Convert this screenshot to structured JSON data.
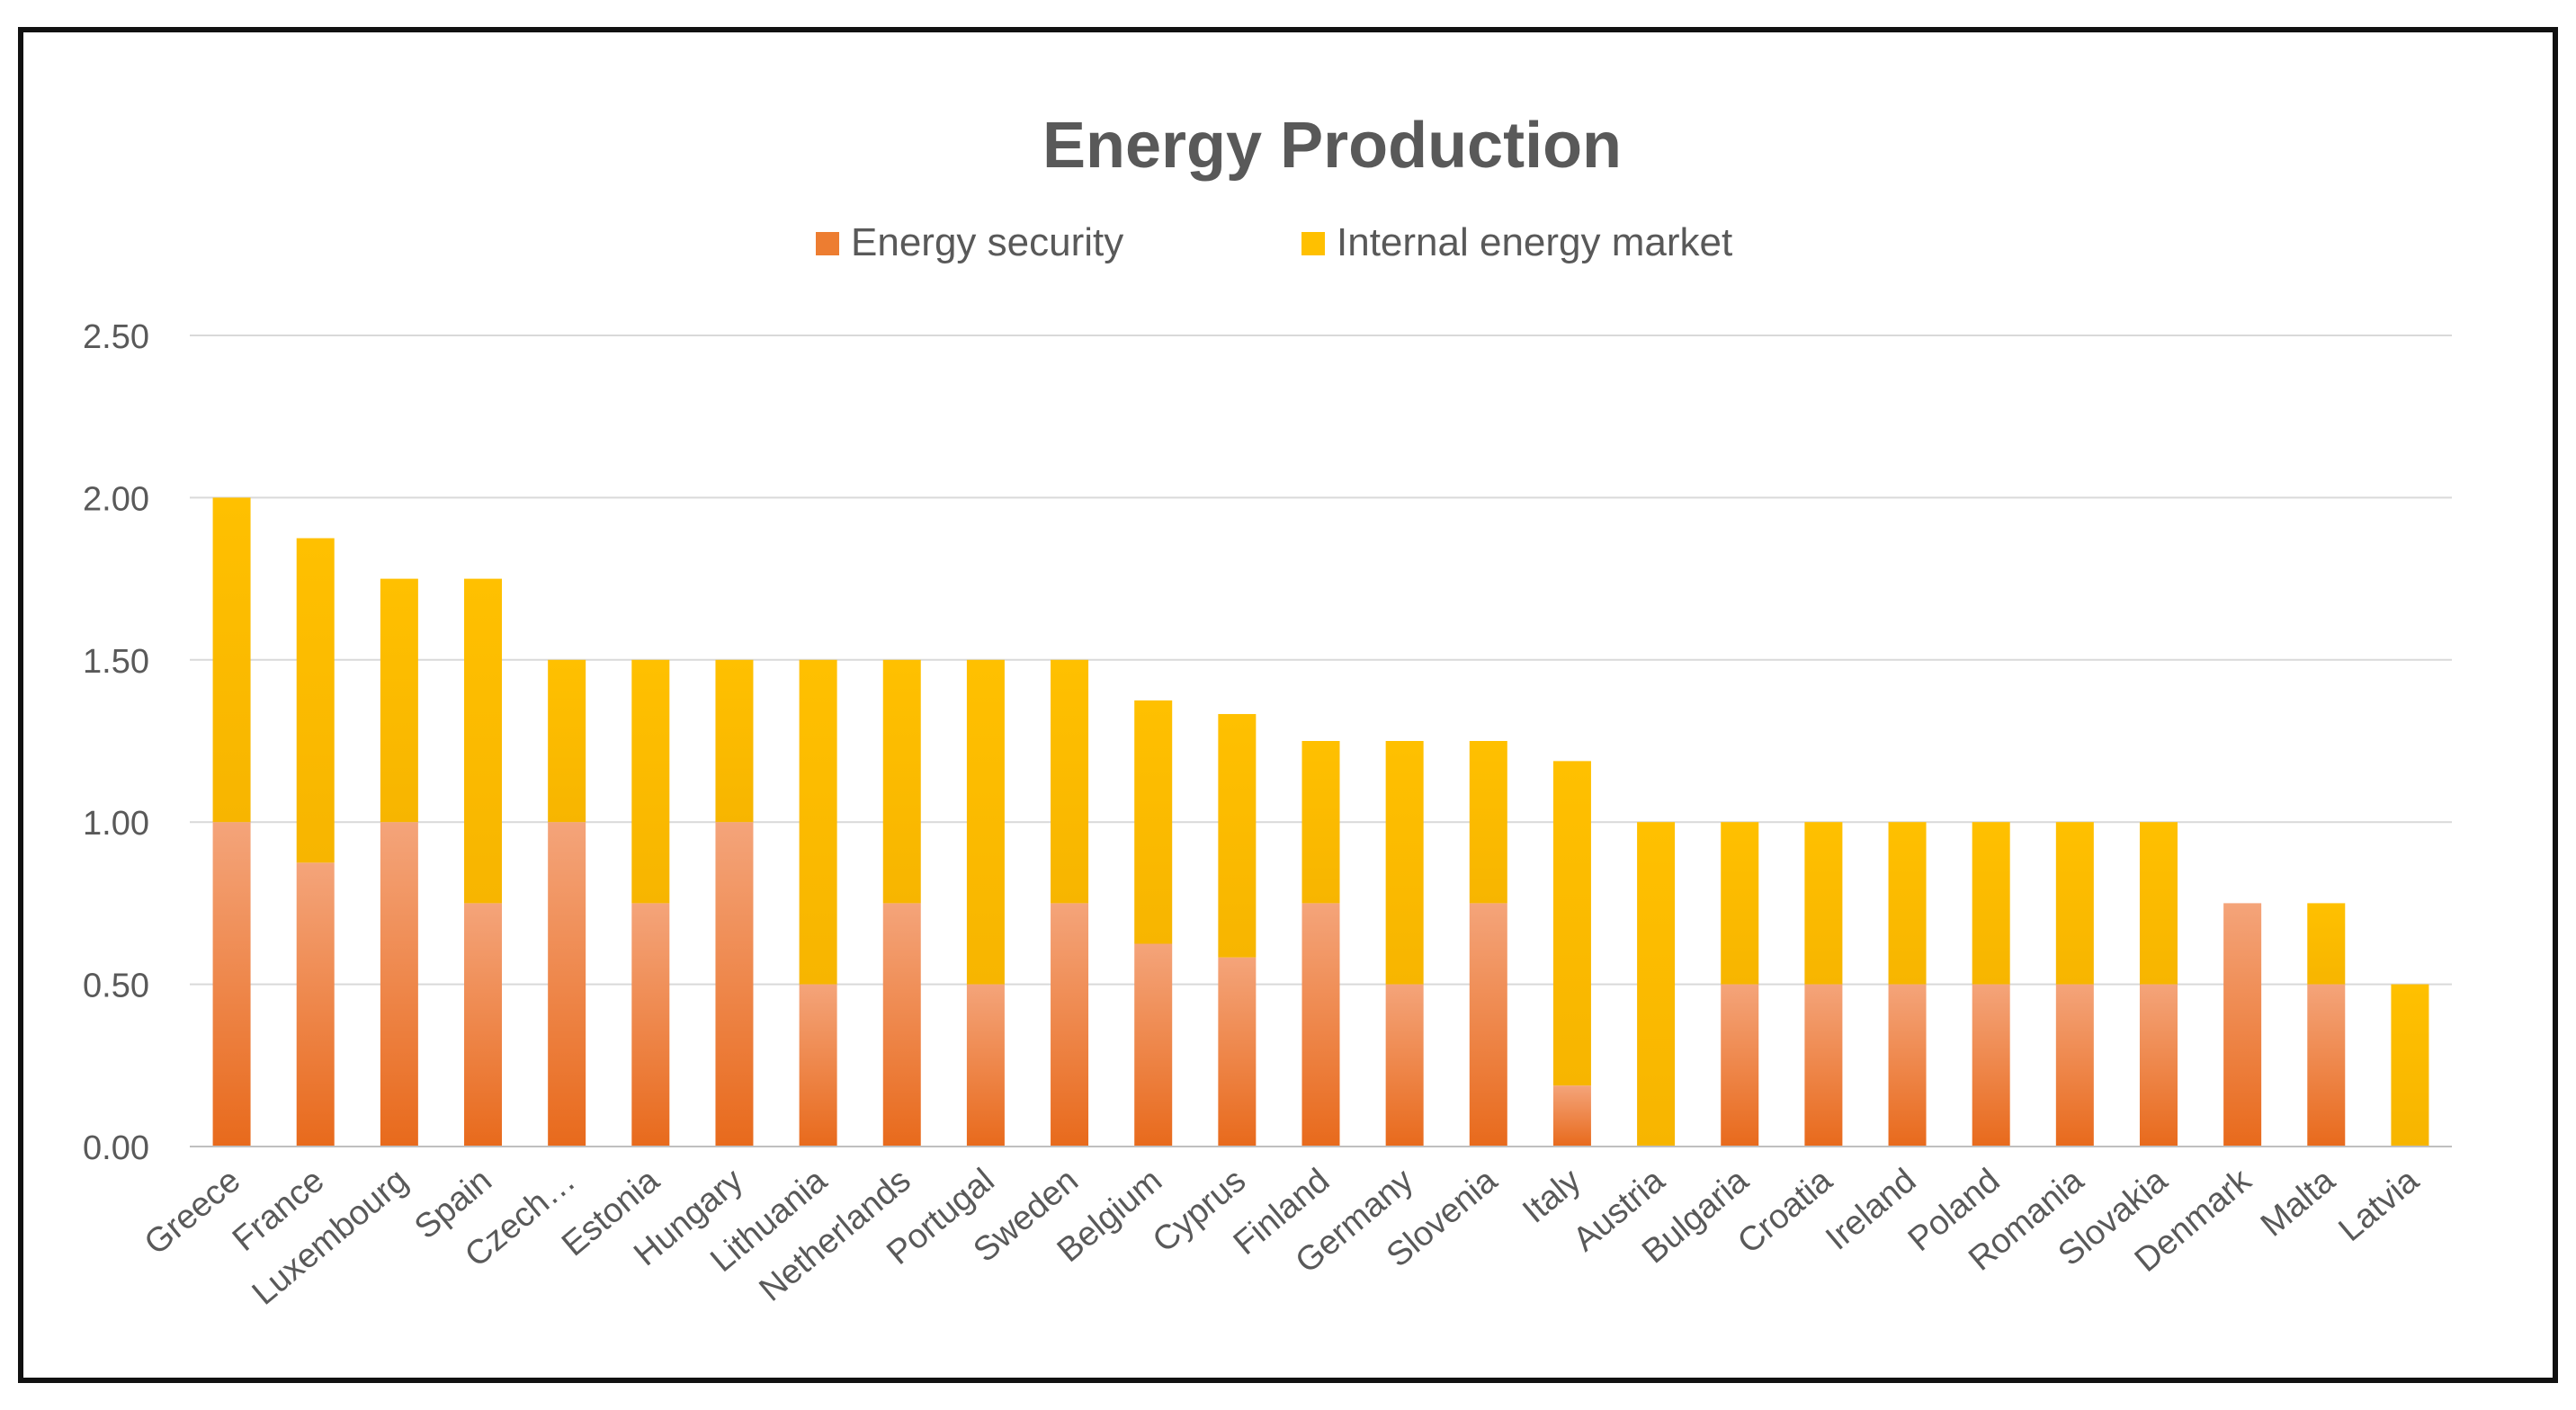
{
  "chart_data": {
    "type": "bar",
    "stacked": true,
    "title": "Energy Production",
    "xlabel": "",
    "ylabel": "",
    "ylim": [
      0,
      2.5
    ],
    "yticks": [
      "0.00",
      "0.50",
      "1.00",
      "1.50",
      "2.00",
      "2.50"
    ],
    "grid": true,
    "legend_position": "top",
    "categories": [
      "Greece",
      "France",
      "Luxembourg",
      "Spain",
      "Czech…",
      "Estonia",
      "Hungary",
      "Lithuania",
      "Netherlands",
      "Portugal",
      "Sweden",
      "Belgium",
      "Cyprus",
      "Finland",
      "Germany",
      "Slovenia",
      "Italy",
      "Austria",
      "Bulgaria",
      "Croatia",
      "Ireland",
      "Poland",
      "Romania",
      "Slovakia",
      "Denmark",
      "Malta",
      "Latvia"
    ],
    "series": [
      {
        "name": "Energy security",
        "color": "#ED7D31",
        "values": [
          1.0,
          0.875,
          1.0,
          0.75,
          1.0,
          0.75,
          1.0,
          0.5,
          0.75,
          0.5,
          0.75,
          0.625,
          0.583,
          0.75,
          0.5,
          0.75,
          0.188,
          0.0,
          0.5,
          0.5,
          0.5,
          0.5,
          0.5,
          0.5,
          0.75,
          0.5,
          0.0
        ]
      },
      {
        "name": "Internal energy market",
        "color": "#FFC000",
        "values": [
          1.0,
          1.0,
          0.75,
          1.0,
          0.5,
          0.75,
          0.5,
          1.0,
          0.75,
          1.0,
          0.75,
          0.75,
          0.75,
          0.5,
          0.75,
          0.5,
          1.0,
          1.0,
          0.5,
          0.5,
          0.5,
          0.5,
          0.5,
          0.5,
          0.0,
          0.25,
          0.5
        ]
      }
    ]
  }
}
